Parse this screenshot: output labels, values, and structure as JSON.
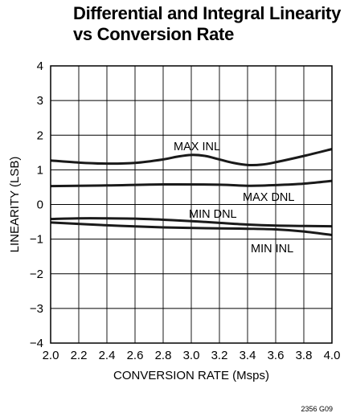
{
  "chart_data": {
    "type": "line",
    "title_lines": [
      "Differential and Integral Linearity",
      "vs Conversion Rate"
    ],
    "xlabel": "CONVERSION RATE (Msps)",
    "ylabel": "LINEARITY (LSB)",
    "xlim": [
      2.0,
      4.0
    ],
    "ylim": [
      -4,
      4
    ],
    "x_ticks": [
      "2.0",
      "2.2",
      "2.4",
      "2.6",
      "2.8",
      "3.0",
      "3.2",
      "3.4",
      "3.6",
      "3.8",
      "4.0"
    ],
    "y_ticks": [
      "−4",
      "−3",
      "−2",
      "−1",
      "0",
      "1",
      "2",
      "3",
      "4"
    ],
    "grid": true,
    "legend": "none",
    "line_color": "#1a1a1a",
    "series": [
      {
        "name": "MAX INL",
        "x": [
          2.0,
          2.2,
          2.4,
          2.6,
          2.8,
          2.9,
          3.0,
          3.1,
          3.2,
          3.3,
          3.4,
          3.5,
          3.6,
          3.8,
          4.0
        ],
        "y": [
          1.27,
          1.21,
          1.18,
          1.2,
          1.3,
          1.38,
          1.43,
          1.4,
          1.3,
          1.2,
          1.14,
          1.15,
          1.22,
          1.4,
          1.6
        ]
      },
      {
        "name": "MAX DNL",
        "x": [
          2.0,
          2.4,
          2.8,
          3.2,
          3.4,
          3.6,
          3.8,
          4.0
        ],
        "y": [
          0.53,
          0.55,
          0.58,
          0.57,
          0.54,
          0.56,
          0.6,
          0.68
        ]
      },
      {
        "name": "MIN DNL",
        "x": [
          2.0,
          2.2,
          2.4,
          2.6,
          2.8,
          3.0,
          3.2,
          3.4,
          3.6,
          3.8,
          4.0
        ],
        "y": [
          -0.42,
          -0.4,
          -0.4,
          -0.41,
          -0.44,
          -0.48,
          -0.53,
          -0.58,
          -0.61,
          -0.62,
          -0.63
        ]
      },
      {
        "name": "MIN INL",
        "x": [
          2.0,
          2.4,
          2.8,
          3.2,
          3.4,
          3.6,
          3.8,
          4.0
        ],
        "y": [
          -0.52,
          -0.6,
          -0.66,
          -0.69,
          -0.7,
          -0.72,
          -0.78,
          -0.88
        ]
      }
    ],
    "annotations": [
      {
        "text": "MAX INL",
        "series": "MAX INL"
      },
      {
        "text": "MAX DNL",
        "series": "MAX DNL"
      },
      {
        "text": "MIN DNL",
        "series": "MIN DNL"
      },
      {
        "text": "MIN INL",
        "series": "MIN INL"
      }
    ],
    "figure_code": "2356 G09"
  }
}
